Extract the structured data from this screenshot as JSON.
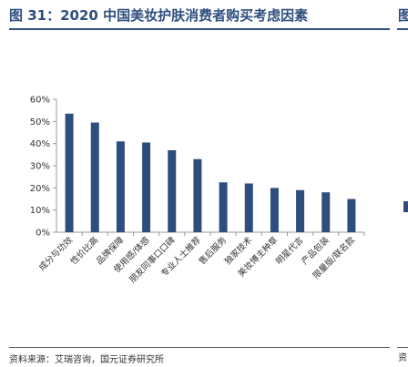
{
  "header": {
    "title": "图 31：2020 中国美妆护肤消费者购买考虑因素",
    "neighbor_title": "图",
    "source": "资料来源：艾瑞咨询，国元证券研究所",
    "neighbor_source": "资"
  },
  "colors": {
    "bar": "#2e4e7e",
    "axis": "#999999",
    "text": "#333333"
  },
  "chart_data": {
    "type": "bar",
    "title": "",
    "xlabel": "",
    "ylabel": "",
    "ylim": [
      0,
      60
    ],
    "yticks": [
      "0%",
      "10%",
      "20%",
      "30%",
      "40%",
      "50%",
      "60%"
    ],
    "grid": false,
    "categories": [
      "成分与功效",
      "性价比高",
      "品牌保障",
      "使用感/体感",
      "朋友同事口口碑",
      "专业人士推荐",
      "售后服务",
      "独家技术",
      "美妆博主种草",
      "明星代言",
      "产品包装",
      "限量版/联名款"
    ],
    "values": [
      53.5,
      49.5,
      41,
      40.5,
      37,
      33,
      22.5,
      22,
      20,
      19,
      18,
      15
    ],
    "unit": "%"
  }
}
